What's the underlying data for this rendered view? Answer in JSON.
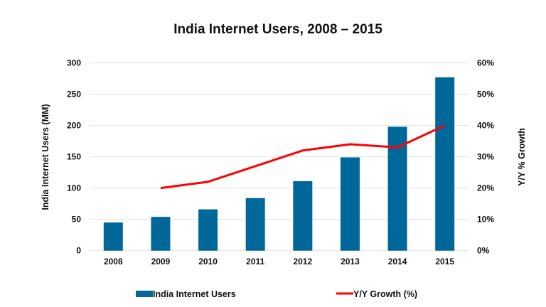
{
  "chart_data": {
    "type": "bar",
    "title": "India Internet Users, 2008 – 2015",
    "categories": [
      "2008",
      "2009",
      "2010",
      "2011",
      "2012",
      "2013",
      "2014",
      "2015"
    ],
    "series": [
      {
        "name": "India Internet Users",
        "type": "bar",
        "axis": "left",
        "color": "#00679b",
        "values": [
          45,
          54,
          66,
          84,
          111,
          149,
          198,
          277
        ]
      },
      {
        "name": "Y/Y Growth (%)",
        "type": "line",
        "axis": "right",
        "color": "#ff0000",
        "values": [
          null,
          20,
          22,
          27,
          32,
          34,
          33,
          40
        ]
      }
    ],
    "xlabel": "",
    "ylabel": "India Internet Users (MM)",
    "y2label": "Y/Y % Growth",
    "ylim": [
      0,
      300
    ],
    "yticks": [
      "0",
      "50",
      "100",
      "150",
      "200",
      "250",
      "300"
    ],
    "y2lim": [
      0,
      60
    ],
    "y2ticks": [
      "0%",
      "10%",
      "20%",
      "30%",
      "40%",
      "50%",
      "60%"
    ],
    "grid": true,
    "legend": {
      "placement": "bottom",
      "entries": [
        "India Internet Users",
        "Y/Y Growth (%)"
      ]
    }
  }
}
